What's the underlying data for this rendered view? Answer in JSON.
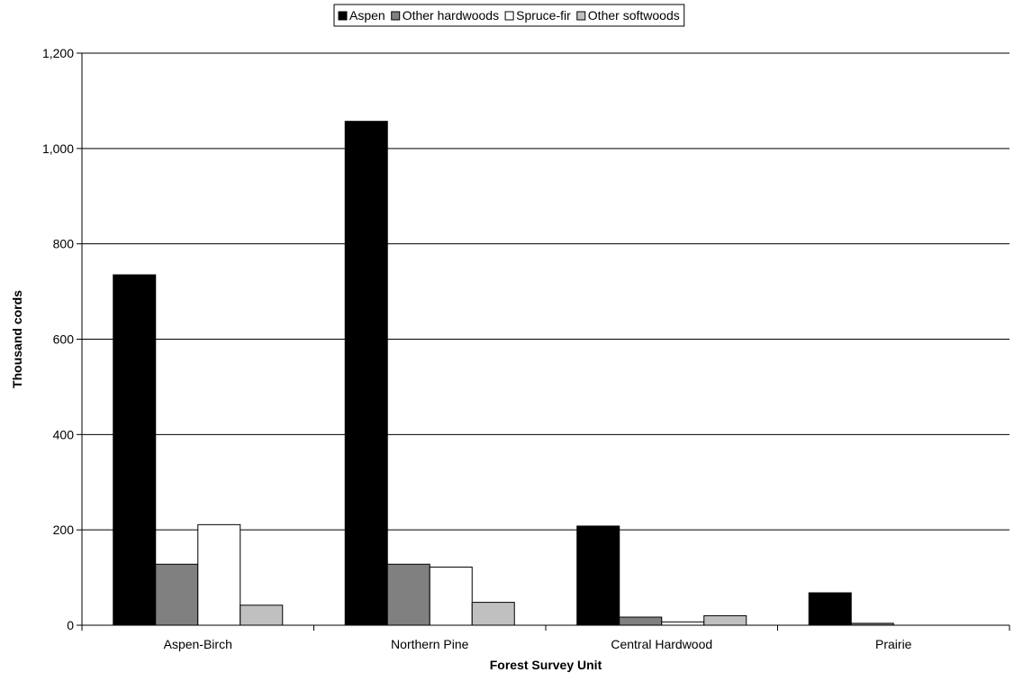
{
  "chart_data": {
    "type": "bar",
    "title": "",
    "xlabel": "Forest Survey Unit",
    "ylabel": "Thousand cords",
    "categories": [
      "Aspen-Birch",
      "Northern Pine",
      "Central Hardwood",
      "Prairie"
    ],
    "series": [
      {
        "name": "Aspen",
        "color": "#000000",
        "values": [
          735,
          1057,
          208,
          68
        ]
      },
      {
        "name": "Other hardwoods",
        "color": "#808080",
        "values": [
          128,
          128,
          17,
          4
        ]
      },
      {
        "name": "Spruce-fir",
        "color": "#ffffff",
        "values": [
          211,
          122,
          7,
          0
        ]
      },
      {
        "name": "Other softwoods",
        "color": "#c0c0c0",
        "values": [
          42,
          48,
          20,
          0
        ]
      }
    ],
    "ylim": [
      0,
      1200
    ],
    "yticks": [
      0,
      200,
      400,
      600,
      800,
      1000,
      1200
    ],
    "ytick_labels": [
      "0",
      "200",
      "400",
      "600",
      "800",
      "1,000",
      "1,200"
    ],
    "grid": true,
    "legend_position": "top"
  }
}
